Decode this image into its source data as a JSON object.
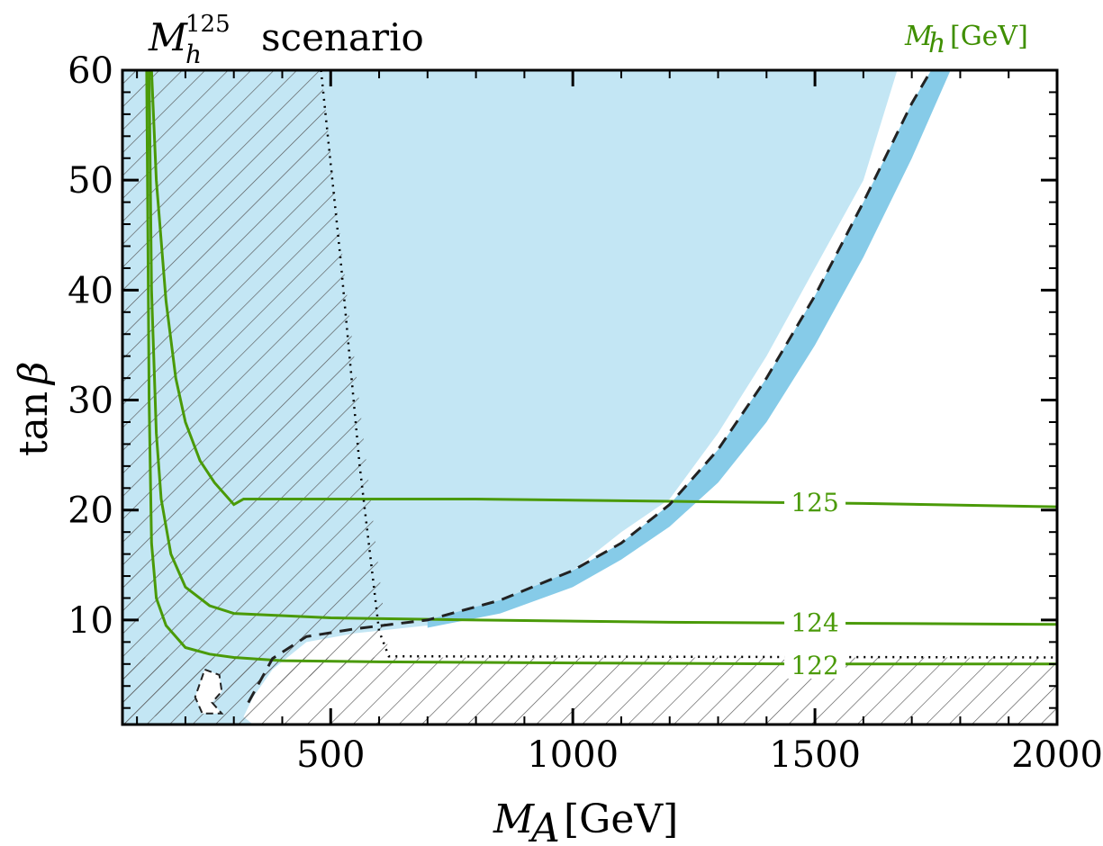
{
  "chart_data": {
    "type": "line",
    "title": {
      "symbol": "M",
      "superscript": "125",
      "subscript": "h",
      "text": "scenario"
    },
    "xlabel": {
      "symbol": "M",
      "subscript": "A",
      "unit": "[GeV]"
    },
    "ylabel": {
      "text": "tan",
      "symbol": "β"
    },
    "legend_title": {
      "symbol": "M",
      "subscript": "h",
      "unit": "[GeV]"
    },
    "xlim": [
      70,
      2000
    ],
    "ylim": [
      0.5,
      60
    ],
    "xticks": [
      500,
      1000,
      1500,
      2000
    ],
    "xtick_labels": [
      "500",
      "1000",
      "1500",
      "2000"
    ],
    "yticks": [
      10,
      20,
      30,
      40,
      50,
      60
    ],
    "ytick_labels": [
      "10",
      "20",
      "30",
      "40",
      "50",
      "60"
    ],
    "colors": {
      "excluded_fill": "#c3e6f4",
      "expected_band": "#86cbe8",
      "contour": "#4a9a08",
      "hatch": "#555555",
      "dashed": "#222222",
      "dotted": "#000000"
    },
    "series": [
      {
        "name": "125",
        "role": "Mh contour",
        "x": [
          130,
          140,
          160,
          180,
          200,
          230,
          260,
          300,
          320,
          500,
          800,
          1200,
          1600,
          2000
        ],
        "y": [
          60,
          50,
          39,
          32,
          28,
          24.5,
          22.5,
          20.5,
          21.0,
          21.0,
          21.0,
          20.8,
          20.6,
          20.3
        ]
      },
      {
        "name": "124",
        "role": "Mh contour",
        "x": [
          125,
          130,
          140,
          150,
          170,
          200,
          250,
          300,
          500,
          800,
          1200,
          1600,
          2000
        ],
        "y": [
          60,
          40,
          27,
          21,
          16,
          13,
          11.3,
          10.6,
          10.2,
          10.0,
          9.8,
          9.7,
          9.6
        ]
      },
      {
        "name": "122",
        "role": "Mh contour",
        "x": [
          120,
          125,
          130,
          140,
          160,
          200,
          250,
          300,
          400,
          600,
          1000,
          1500,
          2000
        ],
        "y": [
          60,
          30,
          17,
          12,
          9.5,
          7.5,
          6.9,
          6.6,
          6.3,
          6.2,
          6.1,
          6.0,
          6.0
        ]
      },
      {
        "role": "expected limit (dashed)",
        "x": [
          330,
          380,
          450,
          550,
          700,
          850,
          1000,
          1100,
          1200,
          1300,
          1400,
          1500,
          1600,
          1700,
          1740
        ],
        "y": [
          2.5,
          6.5,
          8.5,
          9.2,
          10.0,
          11.8,
          14.5,
          17.0,
          20.5,
          25.5,
          32.0,
          39.5,
          48.0,
          57.0,
          60.0
        ]
      },
      {
        "role": "hatched region boundary (dotted)",
        "x": [
          480,
          520,
          560,
          600,
          620,
          2000
        ],
        "y": [
          60,
          43,
          24,
          9,
          6.7,
          6.6
        ]
      }
    ],
    "excluded_region_boundary": {
      "x": [
        70,
        1670,
        1600,
        1500,
        1400,
        1300,
        1200,
        1100,
        1000,
        850,
        700,
        550,
        450,
        380,
        340,
        320,
        340,
        70
      ],
      "y": [
        60,
        60,
        50,
        42,
        34,
        27,
        21,
        18,
        14.5,
        11.5,
        9.5,
        8.8,
        8.0,
        5.5,
        3.0,
        1.2,
        0.5,
        0.5
      ]
    },
    "expected_band_outer": {
      "x": [
        1670,
        1780,
        1700,
        1600,
        1500,
        1400,
        1300,
        1200,
        1100,
        1000,
        850,
        700
      ],
      "y": [
        60,
        60,
        52,
        43,
        35,
        28,
        22.5,
        18.5,
        15.5,
        13.0,
        10.6,
        9.3
      ]
    },
    "hatched_regions": [
      {
        "description": "low-MA region",
        "x": [
          70,
          480,
          620,
          70
        ],
        "y": [
          60,
          60,
          6.7,
          0.5
        ]
      },
      {
        "description": "low-tanβ region",
        "x": [
          70,
          2000
        ],
        "y": [
          0.5,
          6.6
        ]
      }
    ],
    "excluded_islands": [
      {
        "x": [
          240,
          270,
          275,
          255,
          275,
          235,
          220,
          240
        ],
        "y": [
          5.5,
          5.0,
          3.5,
          2.5,
          1.5,
          1.5,
          3.0,
          5.5
        ]
      }
    ],
    "contour_labels": [
      {
        "text": "125",
        "x": 1500,
        "y": 20.7
      },
      {
        "text": "124",
        "x": 1500,
        "y": 9.8
      },
      {
        "text": "122",
        "x": 1500,
        "y": 5.9
      }
    ]
  }
}
